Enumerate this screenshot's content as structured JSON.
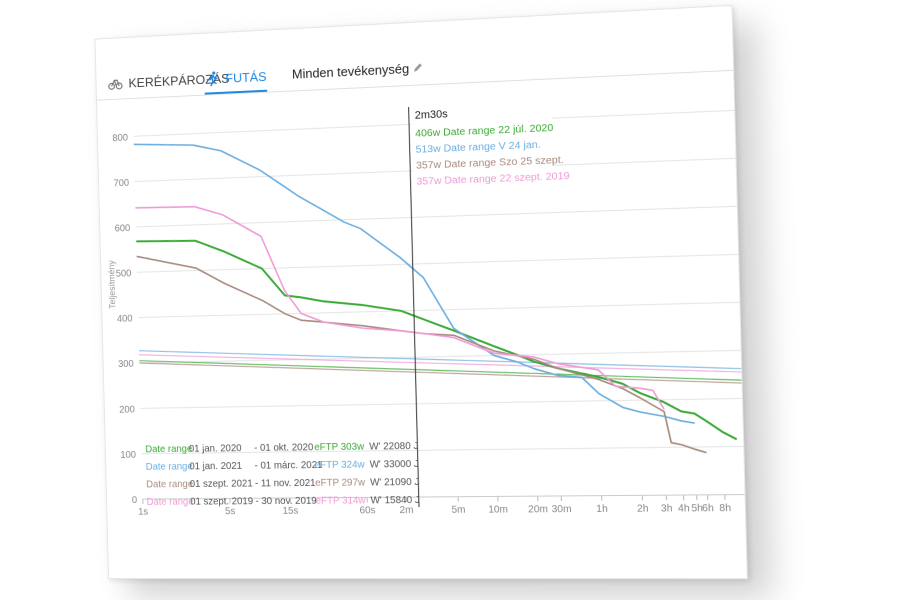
{
  "tabs": [
    {
      "label": "KERÉKPÁROZÁS",
      "icon": "bicycle-icon",
      "active": false
    },
    {
      "label": "FUTÁS",
      "icon": "running-icon",
      "active": true
    }
  ],
  "activity_filter": {
    "label": "Minden tevékenység",
    "icon": "pencil-icon"
  },
  "colors": {
    "green": "#3aaa35",
    "blue": "#6aaee0",
    "brown": "#a88a7e",
    "pink": "#ef9ad6",
    "accent": "#1e88e5"
  },
  "tooltip": {
    "time": "2m30s",
    "rows": [
      {
        "value": "406w",
        "label": "Date range 22 júl. 2020",
        "color": "green"
      },
      {
        "value": "513w",
        "label": "Date range V 24 jan.",
        "color": "blue"
      },
      {
        "value": "357w",
        "label": "Date range Szo 25 szept.",
        "color": "brown"
      },
      {
        "value": "357w",
        "label": "Date range 22 szept. 2019",
        "color": "pink"
      }
    ]
  },
  "legend": [
    {
      "name": "Date range",
      "from": "01 jan. 2020",
      "to": "- 01 okt. 2020",
      "eftp": "eFTP 303w",
      "wprime": "W' 22080 J",
      "color": "green"
    },
    {
      "name": "Date range",
      "from": "01 jan. 2021",
      "to": "- 01 márc. 2021",
      "eftp": "eFTP 324w",
      "wprime": "W' 33000 J",
      "color": "blue"
    },
    {
      "name": "Date range",
      "from": "01 szept. 2021",
      "to": "- 11 nov. 2021",
      "eftp": "eFTP 297w",
      "wprime": "W' 21090 J",
      "color": "brown"
    },
    {
      "name": "Date range",
      "from": "01 szept. 2019",
      "to": "- 30 nov. 2019",
      "eftp": "eFTP 314w",
      "wprime": "W' 15840 J",
      "color": "pink"
    }
  ],
  "chart_data": {
    "type": "line",
    "ylabel": "Teljesítmény",
    "ylim": [
      0,
      820
    ],
    "yticks": [
      0,
      100,
      200,
      300,
      400,
      500,
      600,
      700,
      800
    ],
    "x_scale": "log",
    "x_ticks_seconds": [
      1,
      5,
      15,
      60,
      120,
      300,
      600,
      1200,
      1800,
      3600,
      7200,
      10800,
      14400,
      18000,
      21600,
      28800
    ],
    "x_tick_labels": [
      "1s",
      "5s",
      "15s",
      "60s",
      "2m",
      "5m",
      "10m",
      "20m",
      "30m",
      "1h",
      "2h",
      "3h",
      "4h",
      "5h",
      "6h",
      "8h"
    ],
    "cursor_seconds": 150,
    "series": [
      {
        "name": "Date range",
        "color": "green",
        "x": [
          1,
          3,
          5,
          10,
          15,
          20,
          30,
          60,
          120,
          180,
          300,
          600,
          900,
          1200,
          1800,
          3600,
          5400,
          7200,
          10800,
          14400,
          18000,
          21600,
          28800,
          36000
        ],
        "y": [
          568,
          565,
          540,
          500,
          440,
          435,
          425,
          415,
          400,
          380,
          355,
          320,
          300,
          285,
          270,
          250,
          235,
          215,
          195,
          175,
          170,
          155,
          130,
          115
        ]
      },
      {
        "name": "Date range",
        "color": "blue",
        "x": [
          1,
          3,
          5,
          10,
          15,
          20,
          30,
          45,
          60,
          120,
          180,
          300,
          600,
          900,
          1200,
          1800,
          2700,
          3600,
          5400,
          7200,
          10800,
          14400,
          18000
        ],
        "y": [
          782,
          775,
          760,
          715,
          680,
          655,
          625,
          595,
          580,
          515,
          470,
          360,
          300,
          285,
          270,
          255,
          250,
          215,
          185,
          175,
          165,
          155,
          150
        ]
      },
      {
        "name": "Date range",
        "color": "brown",
        "x": [
          1,
          3,
          5,
          10,
          15,
          20,
          30,
          60,
          120,
          180,
          300,
          600,
          1200,
          1800,
          3600,
          5400,
          7200,
          10800,
          12000,
          14400,
          18000,
          21600
        ],
        "y": [
          535,
          505,
          470,
          430,
          400,
          385,
          380,
          370,
          357,
          350,
          345,
          310,
          290,
          270,
          245,
          225,
          205,
          175,
          110,
          105,
          95,
          88
        ]
      },
      {
        "name": "Date range",
        "color": "pink",
        "x": [
          1,
          3,
          5,
          10,
          15,
          20,
          30,
          60,
          120,
          180,
          300,
          600,
          1200,
          1800,
          3600,
          4800,
          7200,
          9000,
          10800
        ],
        "y": [
          642,
          640,
          620,
          570,
          450,
          400,
          380,
          365,
          357,
          350,
          340,
          305,
          295,
          280,
          265,
          230,
          225,
          220,
          180
        ]
      }
    ],
    "eftp_lines": [
      {
        "color": "green",
        "y_start": 305,
        "y_end": 238
      },
      {
        "color": "blue",
        "y_start": 327,
        "y_end": 262
      },
      {
        "color": "brown",
        "y_start": 300,
        "y_end": 232
      },
      {
        "color": "pink",
        "y_start": 318,
        "y_end": 255
      }
    ]
  }
}
